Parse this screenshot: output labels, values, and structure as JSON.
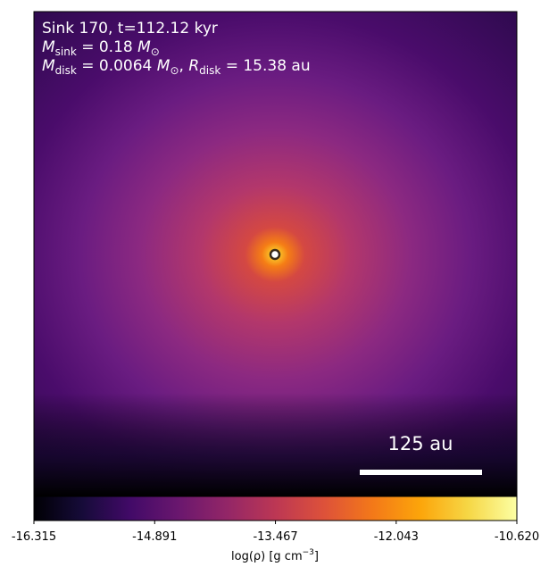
{
  "chart_data": {
    "type": "density_map",
    "title_lines": [
      [
        "Sink 170, t=112.12 kyr"
      ],
      [
        "M",
        "sink",
        " = 0.18 ",
        "M",
        "⊙"
      ],
      [
        "M",
        "disk",
        " = 0.0064 ",
        "M",
        "⊙",
        ", ",
        "R",
        "disk",
        " = 15.38 au"
      ]
    ],
    "scale_bar_label": "125 au",
    "colorbar": {
      "label": [
        "log(ρ) [g cm",
        "−3",
        "]"
      ],
      "lim": [
        -16.315,
        -10.62
      ],
      "ticks": [
        -16.315,
        -14.891,
        -13.467,
        -12.043,
        {
          "value": -10.62,
          "label": "-10.620"
        }
      ],
      "colormap": "inferno"
    }
  }
}
